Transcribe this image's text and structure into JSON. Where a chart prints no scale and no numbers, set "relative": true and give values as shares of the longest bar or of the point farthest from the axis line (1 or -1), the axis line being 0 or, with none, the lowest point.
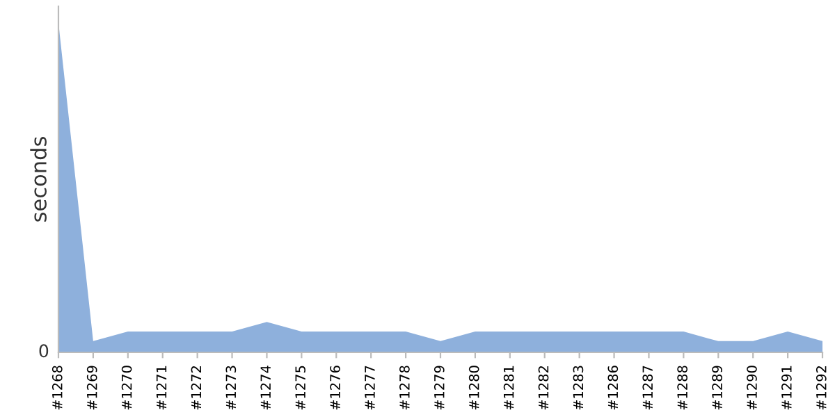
{
  "chart_data": {
    "type": "area",
    "ylabel": "seconds",
    "relative": true,
    "categories": [
      "#1268",
      "#1269",
      "#1270",
      "#1271",
      "#1272",
      "#1273",
      "#1274",
      "#1275",
      "#1276",
      "#1277",
      "#1278",
      "#1279",
      "#1280",
      "#1281",
      "#1282",
      "#1283",
      "#1286",
      "#1287",
      "#1288",
      "#1289",
      "#1290",
      "#1291",
      "#1292"
    ],
    "series": [
      {
        "color": "#8eb0dc",
        "values": [
          1,
          0.034,
          0.063,
          0.063,
          0.063,
          0.063,
          0.092,
          0.063,
          0.063,
          0.063,
          0.063,
          0.034,
          0.063,
          0.063,
          0.063,
          0.063,
          0.063,
          0.063,
          0.063,
          0.034,
          0.034,
          0.063,
          0.034
        ]
      }
    ],
    "annotations": [
      "0"
    ],
    "grid": false,
    "legend": false
  }
}
